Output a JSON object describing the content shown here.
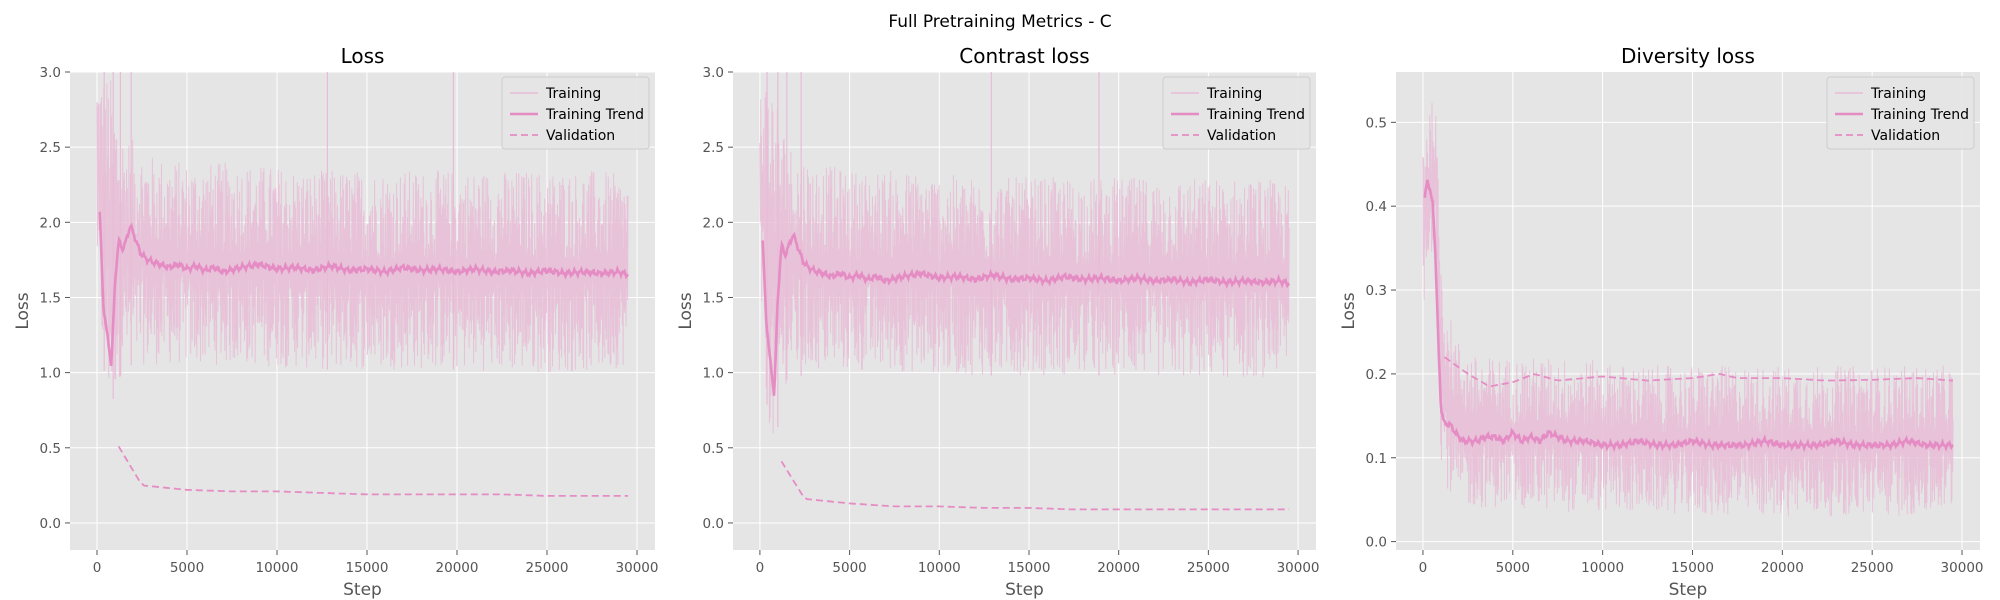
{
  "figure": {
    "title": "Full Pretraining Metrics - C"
  },
  "colors": {
    "background": "#e5e5e5",
    "grid": "#ffffff",
    "raw": "#e8bcd6",
    "trend": "#e58cc4",
    "validation": "#e58cc4"
  },
  "chart_data": [
    {
      "type": "line",
      "title": "Loss",
      "xlabel": "Step",
      "ylabel": "Loss",
      "xlim": [
        -1500,
        31000
      ],
      "ylim": [
        -0.18,
        3.0
      ],
      "xticks": [
        0,
        5000,
        10000,
        15000,
        20000,
        25000,
        30000
      ],
      "yticks": [
        0.0,
        0.5,
        1.0,
        1.5,
        2.0,
        2.5,
        3.0
      ],
      "grid": true,
      "legend": "top-right",
      "series": [
        {
          "name": "Training",
          "style": "band",
          "x": [
            0,
            300,
            700,
            1500,
            3000,
            5000,
            8000,
            12000,
            16000,
            20000,
            24000,
            28000,
            29500
          ],
          "low": [
            1.7,
            1.1,
            0.75,
            1.05,
            1.05,
            1.05,
            1.05,
            1.02,
            1.02,
            1.02,
            1.0,
            1.0,
            1.05
          ],
          "high": [
            3.0,
            3.0,
            3.0,
            2.6,
            2.45,
            2.4,
            2.4,
            2.35,
            2.35,
            2.35,
            2.35,
            2.35,
            2.3
          ],
          "spikes": [
            [
              400,
              3.0
            ],
            [
              900,
              3.0
            ],
            [
              1300,
              3.0
            ],
            [
              1900,
              3.0
            ],
            [
              12800,
              3.0
            ],
            [
              19800,
              3.0
            ]
          ]
        },
        {
          "name": "Training Trend",
          "style": "solid",
          "x": [
            150,
            350,
            600,
            800,
            1000,
            1200,
            1400,
            1600,
            1850,
            2100,
            2400,
            2700,
            3000,
            3500,
            4000,
            4500,
            5000,
            5500,
            6000,
            6500,
            7000,
            8000,
            9000,
            10000,
            11000,
            12000,
            13000,
            14000,
            15000,
            16000,
            17000,
            18000,
            19000,
            20000,
            21000,
            22000,
            23000,
            24000,
            25000,
            26000,
            27000,
            28000,
            29000,
            29500
          ],
          "y": [
            2.07,
            1.45,
            1.22,
            1.05,
            1.6,
            1.88,
            1.82,
            1.87,
            1.98,
            1.9,
            1.8,
            1.76,
            1.74,
            1.72,
            1.7,
            1.72,
            1.69,
            1.71,
            1.68,
            1.7,
            1.67,
            1.7,
            1.72,
            1.69,
            1.7,
            1.68,
            1.71,
            1.68,
            1.69,
            1.67,
            1.7,
            1.68,
            1.69,
            1.67,
            1.69,
            1.67,
            1.68,
            1.66,
            1.68,
            1.66,
            1.67,
            1.66,
            1.67,
            1.65
          ]
        },
        {
          "name": "Validation",
          "style": "dashed",
          "x": [
            1200,
            2500,
            5000,
            7500,
            10000,
            12500,
            15000,
            17500,
            20000,
            22500,
            25000,
            27500,
            29500
          ],
          "y": [
            0.51,
            0.25,
            0.22,
            0.21,
            0.21,
            0.2,
            0.19,
            0.19,
            0.19,
            0.19,
            0.18,
            0.18,
            0.18
          ]
        }
      ]
    },
    {
      "type": "line",
      "title": "Contrast loss",
      "xlabel": "Step",
      "ylabel": "Loss",
      "xlim": [
        -1500,
        31000
      ],
      "ylim": [
        -0.18,
        3.0
      ],
      "xticks": [
        0,
        5000,
        10000,
        15000,
        20000,
        25000,
        30000
      ],
      "yticks": [
        0.0,
        0.5,
        1.0,
        1.5,
        2.0,
        2.5,
        3.0
      ],
      "grid": true,
      "legend": "top-right",
      "series": [
        {
          "name": "Training",
          "style": "band",
          "x": [
            0,
            300,
            700,
            1500,
            3000,
            5000,
            8000,
            12000,
            16000,
            20000,
            24000,
            28000,
            29500
          ],
          "low": [
            1.5,
            0.9,
            0.45,
            0.95,
            1.0,
            1.0,
            1.0,
            0.98,
            0.98,
            0.98,
            0.96,
            0.96,
            1.0
          ],
          "high": [
            3.0,
            3.0,
            3.0,
            2.55,
            2.4,
            2.35,
            2.35,
            2.3,
            2.3,
            2.3,
            2.3,
            2.3,
            2.25
          ],
          "spikes": [
            [
              400,
              3.0
            ],
            [
              1000,
              3.0
            ],
            [
              1500,
              3.0
            ],
            [
              2300,
              3.0
            ],
            [
              12900,
              3.0
            ],
            [
              18900,
              3.0
            ]
          ]
        },
        {
          "name": "Training Trend",
          "style": "solid",
          "x": [
            150,
            350,
            600,
            800,
            1000,
            1200,
            1400,
            1600,
            1850,
            2100,
            2400,
            2700,
            3000,
            3500,
            4000,
            4500,
            5000,
            5500,
            6000,
            6500,
            7000,
            8000,
            9000,
            10000,
            11000,
            12000,
            13000,
            14000,
            15000,
            16000,
            17000,
            18000,
            19000,
            20000,
            21000,
            22000,
            23000,
            24000,
            25000,
            26000,
            27000,
            28000,
            29000,
            29500
          ],
          "y": [
            1.88,
            1.35,
            1.05,
            0.85,
            1.5,
            1.85,
            1.78,
            1.84,
            1.92,
            1.84,
            1.74,
            1.7,
            1.68,
            1.66,
            1.64,
            1.66,
            1.63,
            1.65,
            1.62,
            1.64,
            1.61,
            1.64,
            1.66,
            1.63,
            1.64,
            1.62,
            1.65,
            1.62,
            1.63,
            1.61,
            1.64,
            1.62,
            1.63,
            1.61,
            1.63,
            1.61,
            1.62,
            1.6,
            1.62,
            1.6,
            1.61,
            1.6,
            1.61,
            1.59
          ]
        },
        {
          "name": "Validation",
          "style": "dashed",
          "x": [
            1200,
            2500,
            5000,
            7500,
            10000,
            12500,
            15000,
            17500,
            20000,
            22500,
            25000,
            27500,
            29500
          ],
          "y": [
            0.41,
            0.16,
            0.13,
            0.11,
            0.11,
            0.1,
            0.1,
            0.09,
            0.09,
            0.09,
            0.09,
            0.09,
            0.09
          ]
        }
      ]
    },
    {
      "type": "line",
      "title": "Diversity loss",
      "xlabel": "Step",
      "ylabel": "Loss",
      "xlim": [
        -1500,
        31000
      ],
      "ylim": [
        -0.01,
        0.56
      ],
      "xticks": [
        0,
        5000,
        10000,
        15000,
        20000,
        25000,
        30000
      ],
      "yticks": [
        0.0,
        0.1,
        0.2,
        0.3,
        0.4,
        0.5
      ],
      "grid": true,
      "legend": "top-right",
      "series": [
        {
          "name": "Training",
          "style": "band",
          "x": [
            0,
            300,
            700,
            1000,
            1500,
            2000,
            3000,
            5000,
            8000,
            12000,
            16000,
            20000,
            24000,
            28000,
            29500
          ],
          "low": [
            0.25,
            0.3,
            0.38,
            0.1,
            0.05,
            0.04,
            0.04,
            0.04,
            0.035,
            0.035,
            0.03,
            0.03,
            0.03,
            0.03,
            0.035
          ],
          "high": [
            0.5,
            0.53,
            0.52,
            0.35,
            0.27,
            0.24,
            0.22,
            0.22,
            0.22,
            0.21,
            0.21,
            0.21,
            0.21,
            0.21,
            0.21
          ],
          "spikes": []
        },
        {
          "name": "Training Trend",
          "style": "solid",
          "x": [
            100,
            250,
            400,
            550,
            700,
            850,
            1000,
            1200,
            1500,
            1800,
            2200,
            2600,
            3000,
            3500,
            4000,
            4500,
            5000,
            5500,
            6000,
            6500,
            7000,
            8000,
            9000,
            10000,
            11000,
            12000,
            13000,
            14000,
            15000,
            16000,
            17000,
            18000,
            19000,
            20000,
            21000,
            22000,
            23000,
            24000,
            25000,
            26000,
            27000,
            28000,
            29000,
            29500
          ],
          "y": [
            0.41,
            0.43,
            0.42,
            0.4,
            0.34,
            0.24,
            0.16,
            0.14,
            0.14,
            0.13,
            0.12,
            0.12,
            0.12,
            0.125,
            0.125,
            0.12,
            0.13,
            0.12,
            0.125,
            0.12,
            0.13,
            0.12,
            0.12,
            0.115,
            0.115,
            0.12,
            0.115,
            0.115,
            0.12,
            0.115,
            0.115,
            0.115,
            0.12,
            0.115,
            0.115,
            0.115,
            0.12,
            0.115,
            0.115,
            0.115,
            0.12,
            0.115,
            0.115,
            0.115
          ]
        },
        {
          "name": "Validation",
          "style": "dashed",
          "x": [
            1200,
            2500,
            3700,
            5000,
            6200,
            7500,
            10000,
            12500,
            15000,
            16500,
            17500,
            20000,
            22500,
            25000,
            27500,
            29500
          ],
          "y": [
            0.22,
            0.2,
            0.185,
            0.19,
            0.2,
            0.192,
            0.197,
            0.192,
            0.195,
            0.2,
            0.195,
            0.195,
            0.192,
            0.193,
            0.195,
            0.192
          ]
        }
      ]
    }
  ]
}
